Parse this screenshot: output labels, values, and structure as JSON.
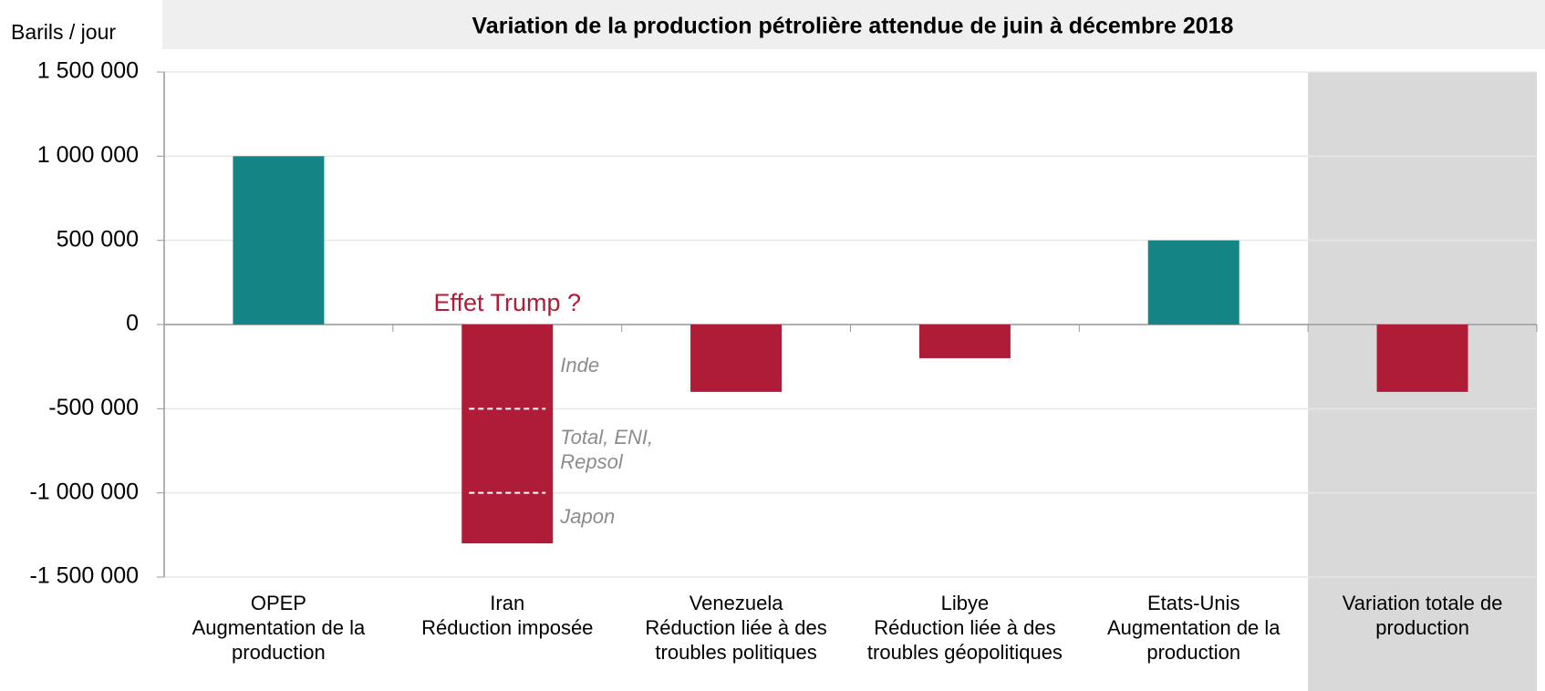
{
  "chart_data": {
    "type": "bar",
    "title": "Variation de la production pétrolière attendue de juin à décembre 2018",
    "y_label": "Barils / jour",
    "categories": [
      [
        "OPEP",
        "Augmentation de la",
        "production"
      ],
      [
        "Iran",
        "Réduction imposée"
      ],
      [
        "Venezuela",
        "Réduction liée à des",
        "troubles politiques"
      ],
      [
        "Libye",
        "Réduction liée à des",
        "troubles géopolitiques"
      ],
      [
        "Etats-Unis",
        "Augmentation de la",
        "production"
      ],
      [
        "Variation totale de",
        "production"
      ]
    ],
    "values": [
      1000000,
      -1300000,
      -400000,
      -200000,
      500000,
      -400000
    ],
    "colors": [
      "#148584",
      "#ae1c37",
      "#ae1c37",
      "#ae1c37",
      "#148584",
      "#ae1c37"
    ],
    "highlight_category": 5,
    "ylim": [
      -1500000,
      1500000
    ],
    "yticks": [
      {
        "value": -1500000,
        "label": "-1 500 000"
      },
      {
        "value": -1000000,
        "label": "-1 000 000"
      },
      {
        "value": -500000,
        "label": "-500 000"
      },
      0,
      {
        "value": 500000,
        "label": "500 000"
      },
      {
        "value": 1000000,
        "label": "1 000 000"
      },
      {
        "value": 1500000,
        "label": "1 500 000"
      }
    ],
    "grid": true,
    "annotation": {
      "text": "Effet Trump ?",
      "category": 1,
      "color": "#ae1c37",
      "segments": [
        [
          "Inde"
        ],
        [
          "Total, ENI,",
          "Repsol"
        ],
        [
          "Japon"
        ]
      ],
      "dividers": [
        -500000,
        -1000000
      ]
    }
  }
}
